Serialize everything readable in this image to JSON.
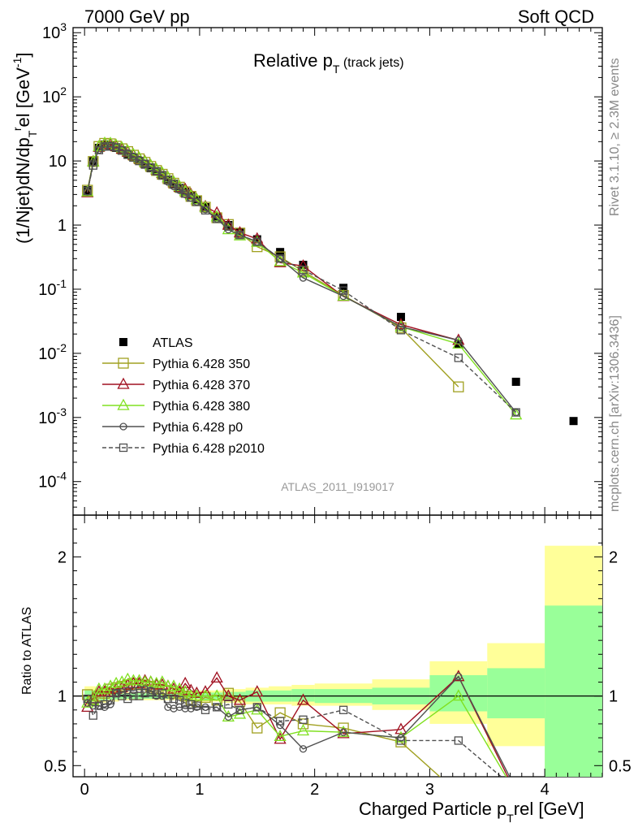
{
  "header": {
    "left": "7000 GeV pp",
    "right": "Soft QCD"
  },
  "side_text": {
    "rivet": "Rivet 3.1.10, ≥ 2.3M events",
    "mcplots": "mcplots.cern.ch [arXiv:1306.3436]"
  },
  "watermark": "ATLAS_2011_I919017",
  "chart_data": [
    {
      "type": "line",
      "title": "Relative p_T (track jets)",
      "ylabel": "(1/Njet)dN/dp_T^rel [GeV^-1]",
      "xlim": [
        -0.1,
        4.5
      ],
      "ylim": [
        3e-05,
        1200
      ],
      "yscale": "log",
      "x_ticks": [
        0,
        1,
        2,
        3,
        4
      ],
      "y_tick_labels": [
        "10^-4",
        "10^-3",
        "10^-2",
        "10^-1",
        "1",
        "10",
        "10^2",
        "10^3"
      ],
      "legend_position": "left",
      "legend": [
        {
          "name": "ATLAS",
          "color": "#000000",
          "marker": "filled-square"
        },
        {
          "name": "Pythia 6.428 350",
          "color": "#a0a020",
          "marker": "open-square"
        },
        {
          "name": "Pythia 6.428 370",
          "color": "#a01020",
          "marker": "open-triangle"
        },
        {
          "name": "Pythia 6.428 380",
          "color": "#80e020",
          "marker": "open-triangle"
        },
        {
          "name": "Pythia 6.428 p0",
          "color": "#505050",
          "marker": "open-circle"
        },
        {
          "name": "Pythia 6.428 p2010",
          "color": "#505050",
          "marker": "open-square-dashed"
        }
      ],
      "x": [
        0.025,
        0.075,
        0.125,
        0.175,
        0.225,
        0.275,
        0.325,
        0.375,
        0.425,
        0.475,
        0.525,
        0.575,
        0.625,
        0.675,
        0.725,
        0.775,
        0.825,
        0.875,
        0.925,
        0.975,
        1.05,
        1.15,
        1.25,
        1.35,
        1.5,
        1.7,
        1.9,
        2.25,
        2.75,
        3.25,
        3.75,
        4.25
      ],
      "series": [
        {
          "name": "ATLAS",
          "values": [
            3.5,
            10.0,
            16.0,
            18.0,
            17.5,
            16.0,
            14.5,
            12.8,
            11.3,
            10.0,
            8.8,
            7.7,
            6.8,
            5.9,
            5.1,
            4.4,
            3.8,
            3.3,
            2.9,
            2.5,
            1.9,
            1.35,
            1.0,
            0.78,
            0.6,
            0.38,
            0.24,
            0.105,
            0.037,
            0.014,
            0.0036,
            0.00088
          ]
        },
        {
          "name": "Pythia 6.428 350",
          "values": [
            3.5,
            9.8,
            16.8,
            18.8,
            18.5,
            17.0,
            15.5,
            14.0,
            12.3,
            10.8,
            9.5,
            8.2,
            7.1,
            6.2,
            5.3,
            4.5,
            3.9,
            3.3,
            2.8,
            2.4,
            1.9,
            1.3,
            1.02,
            0.75,
            0.46,
            0.32,
            0.19,
            0.08,
            0.025,
            0.003,
            null,
            null
          ]
        },
        {
          "name": "Pythia 6.428 370",
          "values": [
            3.2,
            9.8,
            16.5,
            18.5,
            18.0,
            16.8,
            15.3,
            13.8,
            12.3,
            10.9,
            9.8,
            8.5,
            7.3,
            6.4,
            5.5,
            4.6,
            3.9,
            3.6,
            3.0,
            2.5,
            1.95,
            1.55,
            1.0,
            0.76,
            0.61,
            0.26,
            0.23,
            0.077,
            0.028,
            0.016,
            null,
            null
          ]
        },
        {
          "name": "Pythia 6.428 380",
          "values": [
            3.3,
            9.7,
            16.8,
            18.9,
            18.8,
            17.5,
            16.0,
            14.3,
            12.6,
            11.1,
            9.7,
            8.5,
            7.4,
            6.5,
            5.5,
            4.7,
            4.0,
            3.4,
            2.9,
            2.5,
            1.9,
            1.35,
            0.85,
            0.68,
            0.54,
            0.27,
            0.18,
            0.078,
            0.026,
            0.014,
            0.0011,
            null
          ]
        },
        {
          "name": "Pythia 6.428 p0",
          "values": [
            3.3,
            9.3,
            14.8,
            16.5,
            16.5,
            16.3,
            15.0,
            13.3,
            11.8,
            10.5,
            9.2,
            8.0,
            6.8,
            5.9,
            4.7,
            4.0,
            3.5,
            3.0,
            2.65,
            2.3,
            1.75,
            1.25,
            0.85,
            0.7,
            0.55,
            0.3,
            0.15,
            0.078,
            0.026,
            0.016,
            0.0012,
            null
          ]
        },
        {
          "name": "Pythia 6.428 p2010",
          "values": [
            3.4,
            8.5,
            14.8,
            16.8,
            17.0,
            16.3,
            14.5,
            12.5,
            11.3,
            10.0,
            9.0,
            7.9,
            6.9,
            6.0,
            5.0,
            4.3,
            3.7,
            3.1,
            2.7,
            2.3,
            1.7,
            1.25,
            0.95,
            0.7,
            0.55,
            0.3,
            0.2,
            0.095,
            0.023,
            0.0085,
            0.0012,
            null
          ]
        }
      ]
    },
    {
      "type": "line",
      "xlabel": "Charged Particle p_T^rel [GeV]",
      "ylabel": "Ratio to ATLAS",
      "xlim": [
        -0.1,
        4.5
      ],
      "ylim": [
        0.42,
        2.3
      ],
      "y_tick_labels": [
        "0.5",
        "1",
        "2"
      ],
      "x_tick_labels": [
        "0",
        "1",
        "2",
        "3",
        "4"
      ],
      "reference_line": 1,
      "x": [
        0.025,
        0.075,
        0.125,
        0.175,
        0.225,
        0.275,
        0.325,
        0.375,
        0.425,
        0.475,
        0.525,
        0.575,
        0.625,
        0.675,
        0.725,
        0.775,
        0.825,
        0.875,
        0.925,
        0.975,
        1.05,
        1.15,
        1.25,
        1.35,
        1.5,
        1.7,
        1.9,
        2.25,
        2.75,
        3.25,
        3.75
      ],
      "uncertainty_bands": {
        "x_edges": [
          0.0,
          0.1,
          0.2,
          0.3,
          0.4,
          0.5,
          0.6,
          0.7,
          0.8,
          0.9,
          1.0,
          1.1,
          1.2,
          1.3,
          1.4,
          1.6,
          1.8,
          2.0,
          2.5,
          3.0,
          3.5,
          4.0,
          4.5
        ],
        "outer": [
          [
            0.93,
            1.07
          ],
          [
            0.95,
            1.05
          ],
          [
            0.96,
            1.04
          ],
          [
            0.97,
            1.03
          ],
          [
            0.97,
            1.03
          ],
          [
            0.97,
            1.03
          ],
          [
            0.97,
            1.03
          ],
          [
            0.97,
            1.03
          ],
          [
            0.97,
            1.03
          ],
          [
            0.97,
            1.03
          ],
          [
            0.96,
            1.04
          ],
          [
            0.96,
            1.04
          ],
          [
            0.95,
            1.05
          ],
          [
            0.95,
            1.05
          ],
          [
            0.94,
            1.06
          ],
          [
            0.94,
            1.07
          ],
          [
            0.93,
            1.08
          ],
          [
            0.93,
            1.09
          ],
          [
            0.9,
            1.12
          ],
          [
            0.8,
            1.25
          ],
          [
            0.64,
            1.38
          ],
          [
            0.36,
            2.08
          ]
        ],
        "inner": [
          [
            0.96,
            1.04
          ],
          [
            0.97,
            1.03
          ],
          [
            0.975,
            1.025
          ],
          [
            0.98,
            1.02
          ],
          [
            0.98,
            1.02
          ],
          [
            0.98,
            1.02
          ],
          [
            0.98,
            1.02
          ],
          [
            0.98,
            1.02
          ],
          [
            0.98,
            1.02
          ],
          [
            0.98,
            1.02
          ],
          [
            0.975,
            1.025
          ],
          [
            0.975,
            1.025
          ],
          [
            0.97,
            1.03
          ],
          [
            0.97,
            1.03
          ],
          [
            0.96,
            1.04
          ],
          [
            0.96,
            1.04
          ],
          [
            0.96,
            1.05
          ],
          [
            0.95,
            1.05
          ],
          [
            0.94,
            1.06
          ],
          [
            0.89,
            1.15
          ],
          [
            0.84,
            1.2
          ],
          [
            0.35,
            1.65
          ]
        ]
      },
      "series": [
        {
          "name": "Pythia 6.428 350",
          "values": [
            1.01,
            0.97,
            1.0,
            1.02,
            1.05,
            1.06,
            1.07,
            1.08,
            1.09,
            1.08,
            1.08,
            1.07,
            1.05,
            1.05,
            1.04,
            1.02,
            1.02,
            1.0,
            0.97,
            0.96,
            0.99,
            0.97,
            1.02,
            0.96,
            0.77,
            0.88,
            0.8,
            0.77,
            0.67,
            0.3,
            null
          ]
        },
        {
          "name": "Pythia 6.428 370",
          "values": [
            0.92,
            0.98,
            1.03,
            1.03,
            1.03,
            1.05,
            1.06,
            1.08,
            1.09,
            1.09,
            1.11,
            1.1,
            1.08,
            1.08,
            1.07,
            1.05,
            1.03,
            1.09,
            1.04,
            1.02,
            1.03,
            1.13,
            1.0,
            0.97,
            1.03,
            0.69,
            0.97,
            0.73,
            0.76,
            1.14,
            0.3
          ]
        },
        {
          "name": "Pythia 6.428 380",
          "values": [
            0.95,
            0.97,
            1.05,
            1.05,
            1.07,
            1.09,
            1.1,
            1.12,
            1.11,
            1.11,
            1.1,
            1.1,
            1.09,
            1.1,
            1.07,
            1.07,
            1.05,
            1.03,
            1.0,
            1.0,
            1.0,
            1.0,
            0.85,
            0.87,
            0.9,
            0.71,
            0.75,
            0.74,
            0.7,
            1.0,
            0.3
          ]
        },
        {
          "name": "Pythia 6.428 p0",
          "values": [
            0.95,
            0.93,
            0.93,
            0.92,
            0.94,
            1.02,
            1.03,
            1.04,
            1.04,
            1.05,
            1.05,
            1.04,
            1.0,
            1.0,
            0.92,
            0.91,
            0.92,
            0.91,
            0.91,
            0.92,
            0.92,
            0.92,
            0.85,
            0.9,
            0.92,
            0.79,
            0.62,
            0.74,
            0.7,
            1.14,
            0.33
          ]
        },
        {
          "name": "Pythia 6.428 p2010",
          "values": [
            0.98,
            0.86,
            0.93,
            0.94,
            0.97,
            1.02,
            1.0,
            0.98,
            1.0,
            1.0,
            1.02,
            1.03,
            1.01,
            1.02,
            0.98,
            0.98,
            0.97,
            0.95,
            0.94,
            0.93,
            0.9,
            0.92,
            0.94,
            0.9,
            0.92,
            0.82,
            0.83,
            0.9,
            0.68,
            0.68,
            0.33
          ]
        }
      ]
    }
  ]
}
